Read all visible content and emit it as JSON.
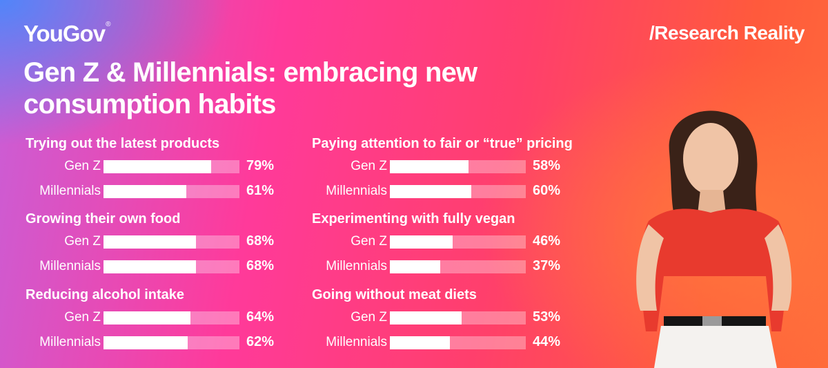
{
  "brand": {
    "logo": "YouGov",
    "logo_mark": "®",
    "tagline": "/Research Reality"
  },
  "colors": {
    "bar_fill": "#ffffff",
    "bar_track": "#ffffff55",
    "background_left": "#ff3a9a",
    "background_right": "#ff5a3c"
  },
  "chart_data": {
    "type": "bar",
    "orientation": "horizontal",
    "title": "Gen Z & Millennials: embracing new consumption habits",
    "unit": "%",
    "xlim": [
      0,
      100
    ],
    "series_labels": [
      "Gen Z",
      "Millennials"
    ],
    "groups": [
      {
        "title": "Trying out the latest products",
        "rows": [
          {
            "label": "Gen Z",
            "value": 79,
            "text": "79%"
          },
          {
            "label": "Millennials",
            "value": 61,
            "text": "61%"
          }
        ]
      },
      {
        "title": "Growing their own food",
        "rows": [
          {
            "label": "Gen Z",
            "value": 68,
            "text": "68%"
          },
          {
            "label": "Millennials",
            "value": 68,
            "text": "68%"
          }
        ]
      },
      {
        "title": "Reducing alcohol intake",
        "rows": [
          {
            "label": "Gen Z",
            "value": 64,
            "text": "64%"
          },
          {
            "label": "Millennials",
            "value": 62,
            "text": "62%"
          }
        ]
      },
      {
        "title": "Paying attention to fair or “true” pricing",
        "rows": [
          {
            "label": "Gen Z",
            "value": 58,
            "text": "58%"
          },
          {
            "label": "Millennials",
            "value": 60,
            "text": "60%"
          }
        ]
      },
      {
        "title": "Experimenting with fully vegan",
        "rows": [
          {
            "label": "Gen Z",
            "value": 46,
            "text": "46%"
          },
          {
            "label": "Millennials",
            "value": 37,
            "text": "37%"
          }
        ]
      },
      {
        "title": "Going without meat diets",
        "rows": [
          {
            "label": "Gen Z",
            "value": 53,
            "text": "53%"
          },
          {
            "label": "Millennials",
            "value": 44,
            "text": "44%"
          }
        ]
      }
    ]
  }
}
